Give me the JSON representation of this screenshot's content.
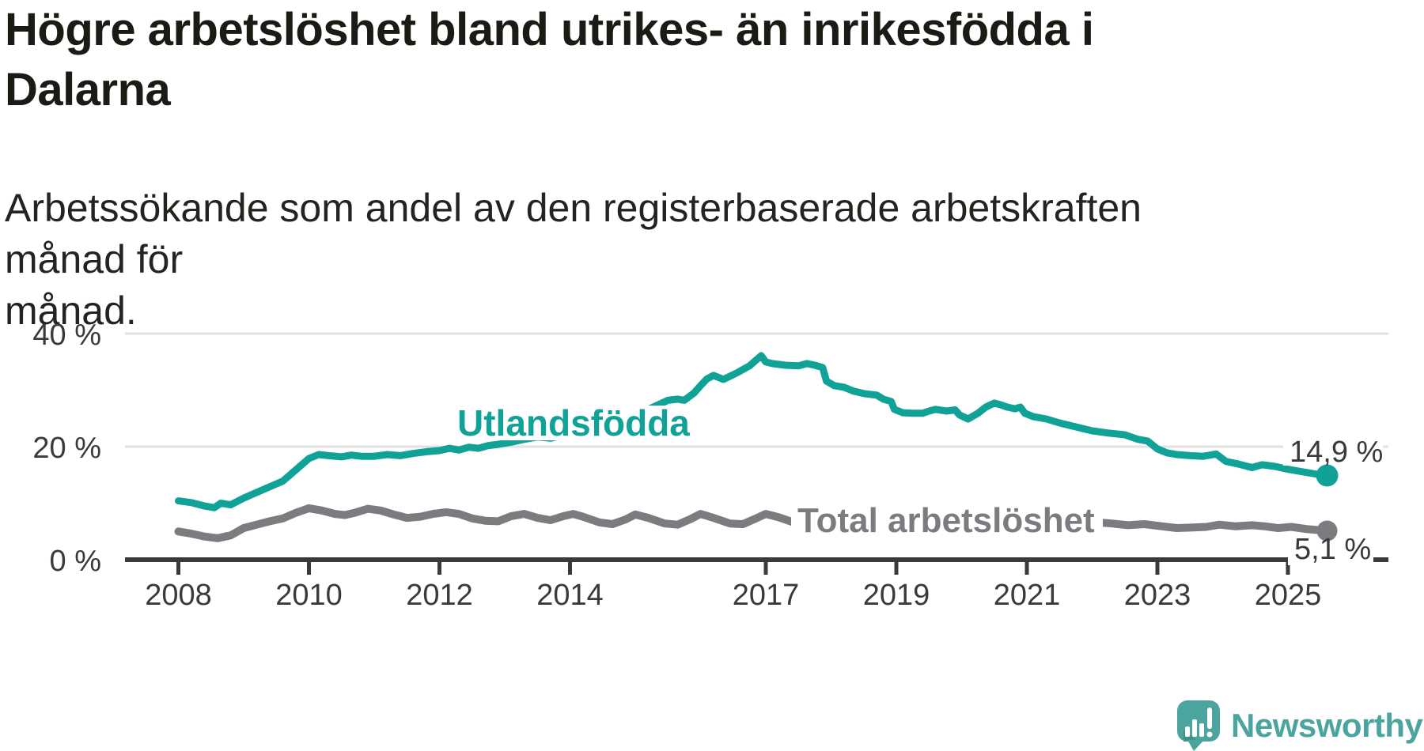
{
  "title": "Högre arbetslöshet bland utrikes- än inrikesfödda i Dalarna",
  "title_lines": [
    "Högre arbetslöshet bland utrikes- än inrikesfödda i",
    "Dalarna"
  ],
  "subtitle": "Arbetssökande som andel av den registerbaserade arbetskraften månad för månad.",
  "subtitle_lines": [
    "Arbetssökande som andel av den registerbaserade arbetskraften månad för",
    "månad."
  ],
  "branding": {
    "logo_text": "Newsworthy",
    "logo_icon": "newsworthy-speech-bubble-chart-icon",
    "logo_color": "#4ba49e"
  },
  "colors": {
    "utlandsfodda": "#10a296",
    "total": "#7c7c80",
    "axis": "#3a3a3a",
    "grid": "#e2e2e2",
    "text": "#1b1b15"
  },
  "chart_data": {
    "type": "line",
    "title": "Högre arbetslöshet bland utrikes- än inrikesfödda i Dalarna",
    "subtitle": "Arbetssökande som andel av den registerbaserade arbetskraften månad för månad.",
    "xlabel": "",
    "ylabel": "",
    "unit": "%",
    "grid": "horizontal",
    "legend_position": "inline-labels",
    "x_range": [
      2008,
      2025.9
    ],
    "ylim": [
      0,
      42
    ],
    "x_axis": {
      "ticks": [
        2008,
        2010,
        2012,
        2014,
        2017,
        2019,
        2021,
        2023,
        2025
      ],
      "labels": [
        "2008",
        "2010",
        "2012",
        "2014",
        "2017",
        "2019",
        "2021",
        "2023",
        "2025"
      ]
    },
    "y_axis": {
      "ticks": [
        0,
        20,
        40
      ],
      "labels": [
        "0 %",
        "20 %",
        "40 %"
      ]
    },
    "series": [
      {
        "name": "Utlandsfödda",
        "color": "#10a296",
        "end_label": "14,9 %",
        "end_value": 14.9,
        "points": [
          [
            2008.0,
            10.4
          ],
          [
            2008.2,
            10.1
          ],
          [
            2008.4,
            9.5
          ],
          [
            2008.55,
            9.2
          ],
          [
            2008.65,
            10.0
          ],
          [
            2008.8,
            9.7
          ],
          [
            2009.0,
            10.9
          ],
          [
            2009.2,
            11.9
          ],
          [
            2009.4,
            12.9
          ],
          [
            2009.6,
            13.9
          ],
          [
            2009.8,
            15.9
          ],
          [
            2010.0,
            17.9
          ],
          [
            2010.15,
            18.6
          ],
          [
            2010.3,
            18.4
          ],
          [
            2010.5,
            18.2
          ],
          [
            2010.65,
            18.5
          ],
          [
            2010.8,
            18.3
          ],
          [
            2011.0,
            18.3
          ],
          [
            2011.2,
            18.6
          ],
          [
            2011.4,
            18.4
          ],
          [
            2011.6,
            18.8
          ],
          [
            2011.8,
            19.1
          ],
          [
            2012.0,
            19.3
          ],
          [
            2012.15,
            19.7
          ],
          [
            2012.3,
            19.4
          ],
          [
            2012.45,
            19.9
          ],
          [
            2012.6,
            19.7
          ],
          [
            2012.75,
            20.2
          ],
          [
            2012.9,
            20.4
          ],
          [
            2013.1,
            20.8
          ],
          [
            2013.3,
            21.3
          ],
          [
            2013.5,
            21.7
          ],
          [
            2013.7,
            21.5
          ],
          [
            2013.9,
            22.0
          ],
          [
            2014.1,
            22.4
          ],
          [
            2014.3,
            22.9
          ],
          [
            2014.5,
            23.4
          ],
          [
            2014.7,
            23.9
          ],
          [
            2014.9,
            24.8
          ],
          [
            2015.05,
            25.4
          ],
          [
            2015.2,
            26.6
          ],
          [
            2015.35,
            27.4
          ],
          [
            2015.5,
            28.2
          ],
          [
            2015.65,
            28.4
          ],
          [
            2015.75,
            28.2
          ],
          [
            2015.9,
            29.5
          ],
          [
            2016.0,
            30.8
          ],
          [
            2016.1,
            32.0
          ],
          [
            2016.2,
            32.6
          ],
          [
            2016.35,
            31.9
          ],
          [
            2016.55,
            33.0
          ],
          [
            2016.75,
            34.3
          ],
          [
            2016.93,
            36.1
          ],
          [
            2017.0,
            35.0
          ],
          [
            2017.1,
            34.7
          ],
          [
            2017.3,
            34.4
          ],
          [
            2017.5,
            34.3
          ],
          [
            2017.63,
            34.7
          ],
          [
            2017.75,
            34.4
          ],
          [
            2017.87,
            34.0
          ],
          [
            2017.93,
            31.6
          ],
          [
            2018.05,
            30.8
          ],
          [
            2018.2,
            30.5
          ],
          [
            2018.35,
            29.8
          ],
          [
            2018.5,
            29.4
          ],
          [
            2018.7,
            29.1
          ],
          [
            2018.8,
            28.4
          ],
          [
            2018.92,
            28.0
          ],
          [
            2018.97,
            26.6
          ],
          [
            2019.1,
            26.0
          ],
          [
            2019.25,
            25.9
          ],
          [
            2019.4,
            25.9
          ],
          [
            2019.5,
            26.3
          ],
          [
            2019.6,
            26.6
          ],
          [
            2019.77,
            26.3
          ],
          [
            2019.9,
            26.5
          ],
          [
            2019.97,
            25.6
          ],
          [
            2020.1,
            24.9
          ],
          [
            2020.25,
            25.9
          ],
          [
            2020.37,
            27.0
          ],
          [
            2020.5,
            27.7
          ],
          [
            2020.6,
            27.4
          ],
          [
            2020.7,
            27.0
          ],
          [
            2020.82,
            26.7
          ],
          [
            2020.9,
            27.0
          ],
          [
            2020.97,
            25.9
          ],
          [
            2021.1,
            25.3
          ],
          [
            2021.3,
            24.9
          ],
          [
            2021.5,
            24.2
          ],
          [
            2021.75,
            23.5
          ],
          [
            2022.0,
            22.8
          ],
          [
            2022.25,
            22.4
          ],
          [
            2022.5,
            22.1
          ],
          [
            2022.7,
            21.3
          ],
          [
            2022.85,
            21.0
          ],
          [
            2023.0,
            19.6
          ],
          [
            2023.15,
            18.9
          ],
          [
            2023.3,
            18.6
          ],
          [
            2023.5,
            18.4
          ],
          [
            2023.7,
            18.3
          ],
          [
            2023.9,
            18.7
          ],
          [
            2024.05,
            17.4
          ],
          [
            2024.25,
            16.9
          ],
          [
            2024.45,
            16.3
          ],
          [
            2024.6,
            16.8
          ],
          [
            2024.8,
            16.5
          ],
          [
            2025.0,
            16.0
          ],
          [
            2025.2,
            15.6
          ],
          [
            2025.45,
            15.1
          ],
          [
            2025.6,
            14.9
          ]
        ]
      },
      {
        "name": "Total arbetslöshet",
        "color": "#7c7c80",
        "end_label": "5,1 %",
        "end_value": 5.1,
        "points": [
          [
            2008.0,
            5.0
          ],
          [
            2008.2,
            4.6
          ],
          [
            2008.4,
            4.1
          ],
          [
            2008.6,
            3.8
          ],
          [
            2008.8,
            4.3
          ],
          [
            2009.0,
            5.6
          ],
          [
            2009.2,
            6.2
          ],
          [
            2009.4,
            6.8
          ],
          [
            2009.6,
            7.3
          ],
          [
            2009.8,
            8.3
          ],
          [
            2010.0,
            9.1
          ],
          [
            2010.2,
            8.7
          ],
          [
            2010.4,
            8.1
          ],
          [
            2010.55,
            7.9
          ],
          [
            2010.7,
            8.3
          ],
          [
            2010.9,
            9.0
          ],
          [
            2011.1,
            8.7
          ],
          [
            2011.3,
            8.0
          ],
          [
            2011.5,
            7.4
          ],
          [
            2011.7,
            7.6
          ],
          [
            2011.9,
            8.1
          ],
          [
            2012.1,
            8.4
          ],
          [
            2012.3,
            8.1
          ],
          [
            2012.5,
            7.3
          ],
          [
            2012.7,
            6.9
          ],
          [
            2012.9,
            6.8
          ],
          [
            2013.1,
            7.7
          ],
          [
            2013.3,
            8.1
          ],
          [
            2013.5,
            7.4
          ],
          [
            2013.7,
            7.0
          ],
          [
            2013.9,
            7.7
          ],
          [
            2014.05,
            8.1
          ],
          [
            2014.2,
            7.6
          ],
          [
            2014.45,
            6.6
          ],
          [
            2014.65,
            6.3
          ],
          [
            2014.85,
            7.1
          ],
          [
            2015.0,
            8.0
          ],
          [
            2015.2,
            7.4
          ],
          [
            2015.45,
            6.4
          ],
          [
            2015.65,
            6.2
          ],
          [
            2015.85,
            7.2
          ],
          [
            2016.0,
            8.1
          ],
          [
            2016.2,
            7.4
          ],
          [
            2016.45,
            6.4
          ],
          [
            2016.65,
            6.3
          ],
          [
            2016.85,
            7.3
          ],
          [
            2017.0,
            8.1
          ],
          [
            2017.2,
            7.5
          ],
          [
            2017.4,
            6.7
          ],
          [
            2017.55,
            6.4
          ],
          [
            2017.75,
            6.7
          ],
          [
            2018.0,
            7.5
          ],
          [
            2018.3,
            6.5
          ],
          [
            2018.55,
            5.9
          ],
          [
            2018.8,
            6.4
          ],
          [
            2019.0,
            7.0
          ],
          [
            2019.3,
            6.1
          ],
          [
            2019.55,
            5.7
          ],
          [
            2019.8,
            6.2
          ],
          [
            2020.0,
            6.9
          ],
          [
            2020.3,
            8.2
          ],
          [
            2020.5,
            8.6
          ],
          [
            2020.75,
            8.3
          ],
          [
            2021.0,
            8.6
          ],
          [
            2021.3,
            7.6
          ],
          [
            2021.6,
            6.9
          ],
          [
            2021.9,
            6.7
          ],
          [
            2022.1,
            6.6
          ],
          [
            2022.3,
            6.4
          ],
          [
            2022.55,
            6.1
          ],
          [
            2022.8,
            6.3
          ],
          [
            2023.0,
            6.0
          ],
          [
            2023.3,
            5.6
          ],
          [
            2023.55,
            5.7
          ],
          [
            2023.75,
            5.8
          ],
          [
            2023.95,
            6.2
          ],
          [
            2024.2,
            5.9
          ],
          [
            2024.45,
            6.1
          ],
          [
            2024.65,
            5.9
          ],
          [
            2024.85,
            5.6
          ],
          [
            2025.05,
            5.8
          ],
          [
            2025.3,
            5.4
          ],
          [
            2025.6,
            5.1
          ]
        ]
      }
    ]
  }
}
